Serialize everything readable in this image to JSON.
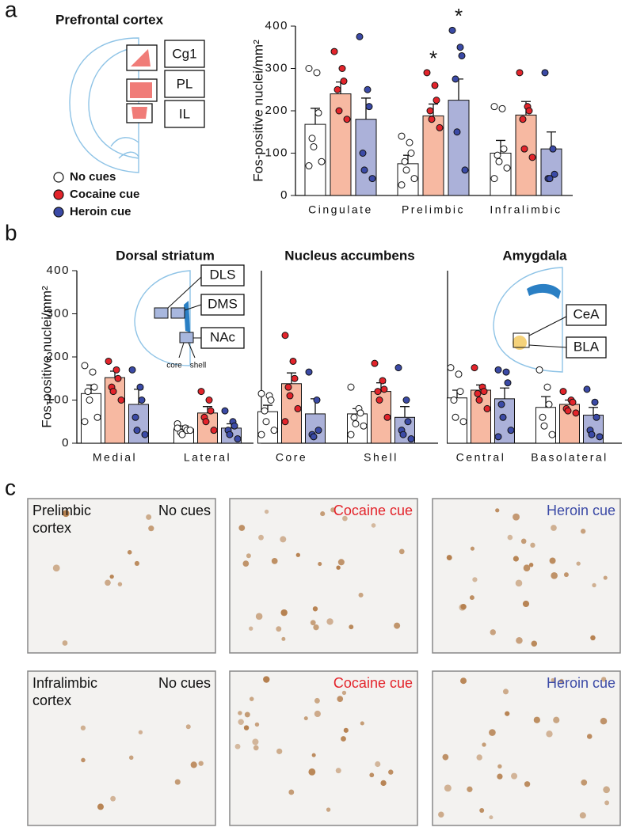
{
  "panel_labels": [
    "a",
    "b",
    "c"
  ],
  "diagrams": {
    "prefrontal": {
      "title": "Prefrontal cortex",
      "labels": [
        "Cg1",
        "PL",
        "IL"
      ]
    },
    "striatum": {
      "labels": [
        "DLS",
        "DMS",
        "NAc",
        "core",
        "shell"
      ]
    },
    "amygdala": {
      "labels": [
        "CeA",
        "BLA"
      ]
    }
  },
  "chart_data": [
    {
      "type": "bar",
      "ylabel": "Fos-positive nuclei/mm²",
      "categories": [
        "Cingulate",
        "Prelimbic",
        "Infralimbic"
      ],
      "ylim": [
        0,
        400
      ],
      "yticks": [
        0,
        100,
        200,
        300,
        400
      ],
      "legend": "lower-left",
      "series": [
        {
          "name": "No cues",
          "color": "#ffffff",
          "point_color": "#ffffff",
          "values": [
            168,
            75,
            100
          ],
          "errors": [
            38,
            20,
            30
          ],
          "points": [
            [
              300,
              290,
              195,
              135,
              115,
              80,
              70
            ],
            [
              140,
              125,
              100,
              80,
              60,
              40,
              25
            ],
            [
              210,
              205,
              110,
              95,
              80,
              65,
              40
            ]
          ]
        },
        {
          "name": "Cocaine cue",
          "color": "#f7b9a2",
          "point_color": "#e3242b",
          "values": [
            240,
            188,
            190
          ],
          "errors": [
            28,
            28,
            32
          ],
          "points": [
            [
              340,
              300,
              270,
              250,
              200,
              180
            ],
            [
              290,
              260,
              225,
              200,
              180,
              160
            ],
            [
              290,
              210,
              200,
              180,
              110,
              90
            ]
          ]
        },
        {
          "name": "Heroin cue",
          "color": "#abb1d9",
          "point_color": "#3b4aa6",
          "values": [
            180,
            225,
            110
          ],
          "errors": [
            50,
            50,
            40
          ],
          "points": [
            [
              375,
              250,
              210,
              100,
              60,
              40
            ],
            [
              390,
              350,
              330,
              275,
              150,
              60
            ],
            [
              290,
              110,
              50,
              40,
              40
            ]
          ]
        }
      ],
      "annotations": [
        {
          "text": "*",
          "category": "Prelimbic",
          "series": "Cocaine cue"
        },
        {
          "text": "*",
          "category": "Prelimbic",
          "series": "Heroin cue"
        }
      ]
    },
    {
      "type": "bar",
      "title": "Dorsal striatum",
      "ylabel": "Fos-positive nuclei/mm²",
      "categories": [
        "Medial",
        "Lateral"
      ],
      "ylim": [
        0,
        400
      ],
      "yticks": [
        0,
        100,
        200,
        300,
        400
      ],
      "series": [
        {
          "color": "#ffffff",
          "point_color": "#ffffff",
          "values": [
            115,
            33
          ],
          "errors": [
            20,
            7
          ],
          "points": [
            [
              180,
              165,
              130,
              120,
              100,
              60,
              50
            ],
            [
              45,
              35,
              30,
              25,
              20,
              30,
              35
            ]
          ]
        },
        {
          "color": "#f7b9a2",
          "point_color": "#e3242b",
          "values": [
            152,
            70
          ],
          "errors": [
            15,
            15
          ],
          "points": [
            [
              190,
              170,
              150,
              130,
              120,
              100
            ],
            [
              120,
              100,
              75,
              60,
              50,
              30
            ]
          ]
        },
        {
          "color": "#abb1d9",
          "point_color": "#3b4aa6",
          "values": [
            90,
            35
          ],
          "errors": [
            35,
            10
          ],
          "points": [
            [
              170,
              130,
              100,
              60,
              30,
              20
            ],
            [
              75,
              50,
              40,
              30,
              20,
              10
            ]
          ]
        }
      ]
    },
    {
      "type": "bar",
      "title": "Nucleus accumbens",
      "categories": [
        "Core",
        "Shell"
      ],
      "ylim": [
        0,
        400
      ],
      "series": [
        {
          "color": "#ffffff",
          "point_color": "#ffffff",
          "values": [
            73,
            68
          ],
          "errors": [
            15,
            12
          ],
          "points": [
            [
              115,
              110,
              100,
              75,
              50,
              30,
              20
            ],
            [
              130,
              80,
              70,
              60,
              45,
              40,
              20
            ]
          ]
        },
        {
          "color": "#f7b9a2",
          "point_color": "#e3242b",
          "values": [
            138,
            120
          ],
          "errors": [
            25,
            20
          ],
          "points": [
            [
              250,
              190,
              150,
              130,
              110,
              80,
              50
            ],
            [
              185,
              145,
              125,
              120,
              100,
              60
            ]
          ]
        },
        {
          "color": "#abb1d9",
          "point_color": "#3b4aa6",
          "values": [
            68,
            60
          ],
          "errors": [
            35,
            25
          ],
          "points": [
            [
              165,
              100,
              30,
              20,
              15
            ],
            [
              175,
              100,
              50,
              30,
              20,
              10
            ]
          ]
        }
      ]
    },
    {
      "type": "bar",
      "title": "Amygdala",
      "categories": [
        "Central",
        "Basolateral"
      ],
      "ylim": [
        0,
        400
      ],
      "series": [
        {
          "color": "#ffffff",
          "point_color": "#ffffff",
          "values": [
            105,
            83
          ],
          "errors": [
            18,
            25
          ],
          "points": [
            [
              175,
              160,
              120,
              100,
              60,
              50
            ],
            [
              170,
              130,
              90,
              60,
              40,
              20
            ]
          ]
        },
        {
          "color": "#f7b9a2",
          "point_color": "#e3242b",
          "values": [
            123,
            90
          ],
          "errors": [
            12,
            10
          ],
          "points": [
            [
              175,
              130,
              120,
              115,
              100,
              80
            ],
            [
              120,
              100,
              95,
              80,
              75,
              70
            ]
          ]
        },
        {
          "color": "#abb1d9",
          "point_color": "#3b4aa6",
          "values": [
            103,
            65
          ],
          "errors": [
            25,
            18
          ],
          "points": [
            [
              170,
              165,
              140,
              90,
              60,
              30,
              15
            ],
            [
              125,
              95,
              60,
              30,
              20,
              15
            ]
          ]
        }
      ]
    }
  ],
  "panel_c": {
    "rows": [
      {
        "label": "Prelimbic cortex",
        "images": [
          "No cues",
          "Cocaine cue",
          "Heroin cue"
        ]
      },
      {
        "label": "Infralimbic cortex",
        "images": [
          "No cues",
          "Cocaine cue",
          "Heroin cue"
        ]
      }
    ]
  }
}
